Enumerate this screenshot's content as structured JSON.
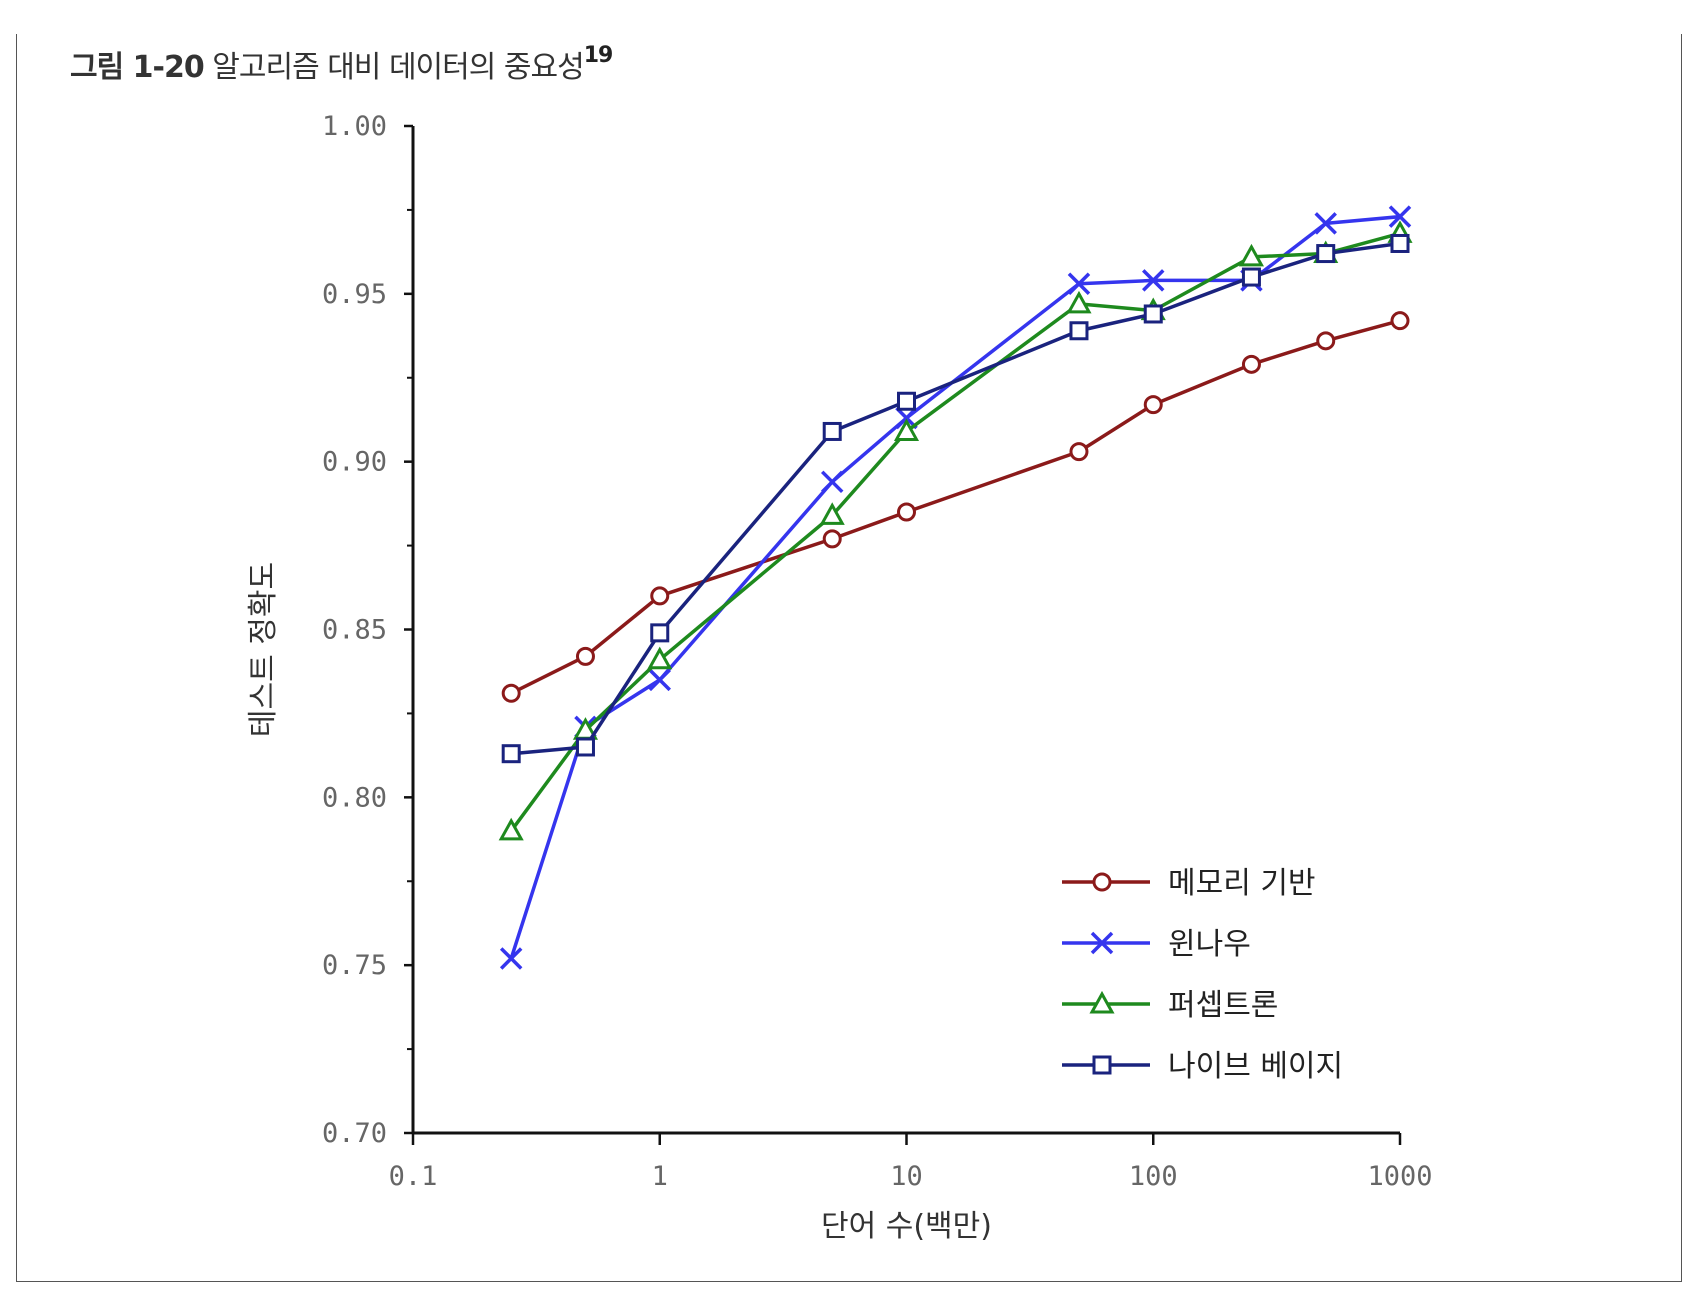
{
  "figure": {
    "number": "그림 1-20",
    "caption": "알고리즘 대비 데이터의 중요성",
    "footnote": "19"
  },
  "chart_data": {
    "type": "line",
    "title": "그림 1-20 알고리즘 대비 데이터의 중요성",
    "xlabel": "단어 수(백만)",
    "ylabel": "테스트 정확도",
    "xscale": "log",
    "xlim": [
      0.1,
      1000
    ],
    "ylim": [
      0.7,
      1.0
    ],
    "xticks": [
      0.1,
      1,
      10,
      100,
      1000
    ],
    "xtick_labels": [
      "0.1",
      "1",
      "10",
      "100",
      "1000"
    ],
    "yticks": [
      0.7,
      0.75,
      0.8,
      0.85,
      0.9,
      0.95,
      1.0
    ],
    "ytick_labels": [
      "0.70",
      "0.75",
      "0.80",
      "0.85",
      "0.90",
      "0.95",
      "1.00"
    ],
    "legend_position": "lower-right",
    "grid": false,
    "x": [
      0.25,
      0.5,
      1,
      5,
      10,
      50,
      100,
      250,
      500,
      1000
    ],
    "series": [
      {
        "name": "메모리 기반",
        "color": "#8b1a1a",
        "marker": "circle",
        "values": [
          0.831,
          0.842,
          0.86,
          0.877,
          0.885,
          0.903,
          0.917,
          0.929,
          0.936,
          0.942
        ]
      },
      {
        "name": "윈나우",
        "color": "#3535ee",
        "marker": "x",
        "values": [
          0.752,
          0.821,
          0.835,
          0.894,
          0.913,
          0.953,
          0.954,
          0.954,
          0.971,
          0.973
        ]
      },
      {
        "name": "퍼셉트론",
        "color": "#1e8a1e",
        "marker": "triangle",
        "values": [
          0.79,
          0.82,
          0.841,
          0.884,
          0.909,
          0.947,
          0.945,
          0.961,
          0.962,
          0.968
        ]
      },
      {
        "name": "나이브 베이지",
        "color": "#1a237e",
        "marker": "square",
        "values": [
          0.813,
          0.815,
          0.849,
          0.909,
          0.918,
          0.939,
          0.944,
          0.955,
          0.962,
          0.965
        ]
      }
    ]
  }
}
